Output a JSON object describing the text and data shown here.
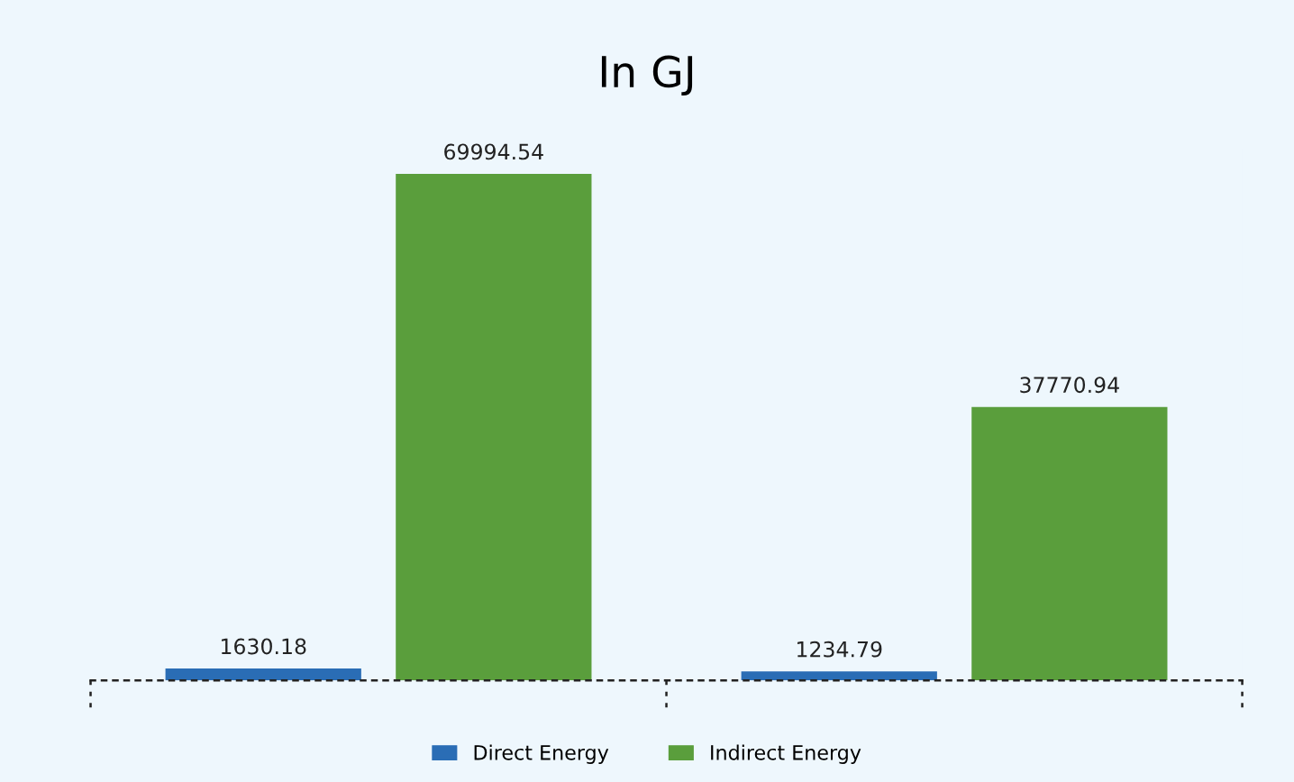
{
  "chart_data": {
    "type": "bar",
    "title": "In GJ",
    "categories": [
      null,
      null
    ],
    "series": [
      {
        "name": "Direct Energy",
        "color": "#2a6db5",
        "values": [
          1630.18,
          1234.79
        ]
      },
      {
        "name": "Indirect Energy",
        "color": "#5a9e3c",
        "values": [
          69994.54,
          37770.94
        ]
      }
    ],
    "data_labels": true,
    "legend": "bottom",
    "grid": false
  }
}
